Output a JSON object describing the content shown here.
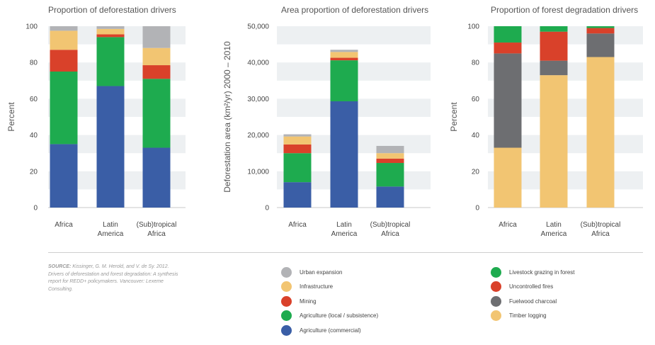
{
  "chart_data": [
    {
      "type": "bar",
      "stacked": true,
      "title": "Proportion of deforestation drivers",
      "ylabel": "Percent",
      "xlabel": "",
      "ylim": [
        0,
        100
      ],
      "yticks": [
        "0",
        "20",
        "40",
        "60",
        "80",
        "100"
      ],
      "categories": [
        [
          "Africa"
        ],
        [
          "Latin",
          "America"
        ],
        [
          "(Sub)tropical",
          "Africa"
        ]
      ],
      "series": [
        {
          "name": "Agriculture (commercial)",
          "color": "#3a5ea6",
          "values": [
            35,
            67,
            33
          ]
        },
        {
          "name": "Agriculture (local / subsistence)",
          "color": "#1eab4f",
          "values": [
            40,
            27,
            38
          ]
        },
        {
          "name": "Mining",
          "color": "#d9412a",
          "values": [
            12,
            1.5,
            7.5
          ]
        },
        {
          "name": "Infrastructure",
          "color": "#f2c572",
          "values": [
            10.5,
            3,
            9.5
          ]
        },
        {
          "name": "Urban expansion",
          "color": "#b2b3b6",
          "values": [
            2.5,
            1.5,
            12
          ]
        }
      ],
      "grid": "horizontal bands",
      "legend": "bottom"
    },
    {
      "type": "bar",
      "stacked": true,
      "title": "Area proportion of deforestation drivers",
      "ylabel": "Deforestation area (km²/yr) 2000 – 2010",
      "xlabel": "",
      "ylim": [
        0,
        50000
      ],
      "yticks": [
        "0",
        "10,000",
        "20,000",
        "30,000",
        "40,000",
        "50,000"
      ],
      "categories": [
        [
          "Africa"
        ],
        [
          "Latin",
          "America"
        ],
        [
          "(Sub)tropical",
          "Africa"
        ]
      ],
      "series": [
        {
          "name": "Agriculture (commercial)",
          "color": "#3a5ea6",
          "values": [
            7000,
            29300,
            5800
          ]
        },
        {
          "name": "Agriculture (local / subsistence)",
          "color": "#1eab4f",
          "values": [
            8000,
            11300,
            6500
          ]
        },
        {
          "name": "Mining",
          "color": "#d9412a",
          "values": [
            2400,
            700,
            1200
          ]
        },
        {
          "name": "Infrastructure",
          "color": "#f2c572",
          "values": [
            2200,
            1600,
            1500
          ]
        },
        {
          "name": "Urban expansion",
          "color": "#b2b3b6",
          "values": [
            600,
            600,
            2000
          ]
        }
      ],
      "grid": "horizontal bands",
      "legend": "bottom"
    },
    {
      "type": "bar",
      "stacked": true,
      "title": "Proportion of forest degradation drivers",
      "ylabel": "Percent",
      "xlabel": "",
      "ylim": [
        0,
        100
      ],
      "yticks": [
        "0",
        "20",
        "40",
        "60",
        "80",
        "100"
      ],
      "categories": [
        [
          "Africa"
        ],
        [
          "Latin",
          "America"
        ],
        [
          "(Sub)tropical",
          "Africa"
        ]
      ],
      "series": [
        {
          "name": "Timber logging",
          "color": "#f2c572",
          "values": [
            33,
            73,
            83
          ]
        },
        {
          "name": "Fuelwood charcoal",
          "color": "#6d6e71",
          "values": [
            52,
            8,
            13
          ]
        },
        {
          "name": "Uncontrolled fires",
          "color": "#d9412a",
          "values": [
            6,
            16,
            3
          ]
        },
        {
          "name": "Livestock grazing in forest",
          "color": "#1eab4f",
          "values": [
            9,
            3,
            1
          ]
        }
      ],
      "grid": "horizontal bands",
      "legend": "bottom"
    }
  ],
  "source": {
    "label": "SOURCE:",
    "text": "Kissinger, G. M. Herold, and V. de Sy. 2012. Drivers of deforestation and forest degradation: A synthesis report for REDD+ policymakers. Vancouver: Lexeme Consulting."
  },
  "legend_left": [
    {
      "label": "Urban expansion",
      "color": "#b2b3b6"
    },
    {
      "label": "Infrastructure",
      "color": "#f2c572"
    },
    {
      "label": "Mining",
      "color": "#d9412a"
    },
    {
      "label": "Agriculture (local / subsistence)",
      "color": "#1eab4f"
    },
    {
      "label": "Agriculture (commercial)",
      "color": "#3a5ea6"
    }
  ],
  "legend_right": [
    {
      "label": "Livestock grazing in forest",
      "color": "#1eab4f"
    },
    {
      "label": "Uncontrolled fires",
      "color": "#d9412a"
    },
    {
      "label": "Fuelwood charcoal",
      "color": "#6d6e71"
    },
    {
      "label": "Timber logging",
      "color": "#f2c572"
    }
  ]
}
